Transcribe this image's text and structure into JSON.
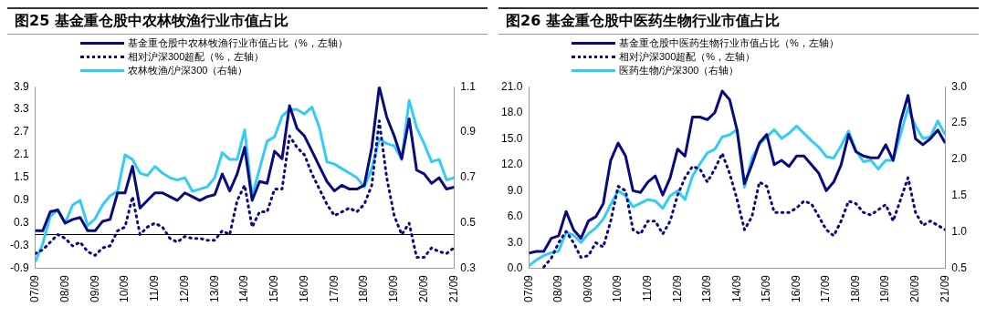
{
  "chart_data": [
    {
      "type": "line",
      "title": "图25 基金重仓股中农林牧渔行业市值占比",
      "x": [
        "2007-09",
        "2007-12",
        "2008-03",
        "2008-06",
        "2008-09",
        "2008-12",
        "2009-03",
        "2009-06",
        "2009-09",
        "2009-12",
        "2010-03",
        "2010-06",
        "2010-09",
        "2010-12",
        "2011-03",
        "2011-06",
        "2011-09",
        "2011-12",
        "2012-03",
        "2012-06",
        "2012-09",
        "2012-12",
        "2013-03",
        "2013-06",
        "2013-09",
        "2013-12",
        "2014-03",
        "2014-06",
        "2014-09",
        "2014-12",
        "2015-03",
        "2015-06",
        "2015-09",
        "2015-12",
        "2016-03",
        "2016-06",
        "2016-09",
        "2016-12",
        "2017-03",
        "2017-06",
        "2017-09",
        "2017-12",
        "2018-03",
        "2018-06",
        "2018-09",
        "2018-12",
        "2019-03",
        "2019-06",
        "2019-09",
        "2019-12",
        "2020-03",
        "2020-06",
        "2020-09",
        "2020-12",
        "2021-03",
        "2021-06",
        "2021-09"
      ],
      "series": [
        {
          "name": "基金重仓股中农林牧渔行业市值占比（%，左轴）",
          "color": "#0a0a80",
          "line_style": "solid",
          "values": [
            0.1,
            0.1,
            0.6,
            0.65,
            0.3,
            0.4,
            0.45,
            0.1,
            0.1,
            0.35,
            0.4,
            1.1,
            1.1,
            1.8,
            0.7,
            0.9,
            1.1,
            1.1,
            1.0,
            0.9,
            1.1,
            1.0,
            0.9,
            1.0,
            1.05,
            1.6,
            1.15,
            1.6,
            2.3,
            0.9,
            1.4,
            1.35,
            2.2,
            2.0,
            3.4,
            2.8,
            2.6,
            2.2,
            1.8,
            1.4,
            1.15,
            1.3,
            1.2,
            1.2,
            1.3,
            2.3,
            3.9,
            3.1,
            2.6,
            2.0,
            3.05,
            1.7,
            1.6,
            1.35,
            1.5,
            1.2,
            1.25
          ]
        },
        {
          "name": "相对沪深300超配（%，左轴）",
          "color": "#0a0a80",
          "line_style": "dotted",
          "values": [
            -0.5,
            -0.4,
            -0.2,
            0.0,
            -0.1,
            -0.3,
            -0.2,
            -0.45,
            -0.55,
            -0.35,
            -0.3,
            0.1,
            0.2,
            1.0,
            0.0,
            0.2,
            0.3,
            0.2,
            -0.1,
            -0.2,
            -0.05,
            -0.1,
            -0.1,
            -0.15,
            -0.15,
            0.1,
            0.0,
            0.9,
            1.3,
            0.2,
            0.6,
            0.6,
            1.2,
            1.2,
            2.6,
            2.3,
            2.1,
            1.6,
            1.2,
            0.8,
            0.5,
            0.6,
            0.7,
            0.6,
            0.8,
            1.3,
            3.0,
            1.5,
            0.5,
            0.0,
            0.3,
            -0.6,
            -0.6,
            -0.35,
            -0.45,
            -0.5,
            -0.35
          ]
        },
        {
          "name": "农林牧渔/沪深300（右轴）",
          "color": "#33ccf5",
          "line_style": "solid",
          "axis": "y2",
          "values": [
            0.33,
            0.41,
            0.53,
            0.56,
            0.5,
            0.58,
            0.6,
            0.49,
            0.52,
            0.58,
            0.62,
            0.64,
            0.8,
            0.78,
            0.72,
            0.71,
            0.75,
            0.72,
            0.7,
            0.69,
            0.7,
            0.64,
            0.65,
            0.66,
            0.7,
            0.81,
            0.78,
            0.78,
            0.91,
            0.62,
            0.74,
            0.86,
            0.88,
            0.97,
            1.0,
            1.0,
            0.98,
            1.01,
            0.92,
            0.77,
            0.76,
            0.74,
            0.72,
            0.7,
            0.66,
            0.74,
            0.87,
            0.85,
            0.84,
            0.78,
            1.04,
            0.92,
            0.85,
            0.77,
            0.78,
            0.69,
            0.7
          ]
        }
      ],
      "xlim": [
        "2007-09",
        "2021-09"
      ],
      "xticks": [
        {
          "value": "2007-09",
          "label": "07/09"
        },
        {
          "value": "2008-09",
          "label": "08/09"
        },
        {
          "value": "2009-09",
          "label": "09/09"
        },
        {
          "value": "2010-09",
          "label": "10/09"
        },
        {
          "value": "2011-09",
          "label": "11/09"
        },
        {
          "value": "2012-09",
          "label": "12/09"
        },
        {
          "value": "2013-09",
          "label": "13/09"
        },
        {
          "value": "2014-09",
          "label": "14/09"
        },
        {
          "value": "2015-09",
          "label": "15/09"
        },
        {
          "value": "2016-09",
          "label": "16/09"
        },
        {
          "value": "2017-09",
          "label": "17/09"
        },
        {
          "value": "2018-09",
          "label": "18/09"
        },
        {
          "value": "2019-09",
          "label": "19/09"
        },
        {
          "value": "2020-09",
          "label": "20/09"
        },
        {
          "value": "2021-09",
          "label": "21/09"
        }
      ],
      "ylim": [
        -0.9,
        3.9
      ],
      "yticks": [
        -0.9,
        -0.3,
        0.3,
        0.9,
        1.5,
        2.1,
        2.7,
        3.3,
        3.9
      ],
      "y2lim": [
        0.3,
        1.1
      ],
      "y2ticks": [
        0.3,
        0.5,
        0.7,
        0.9,
        1.1
      ],
      "ref_lines": [
        {
          "axis": "y",
          "value": 0,
          "color": "#000000"
        }
      ],
      "grid": false,
      "legend": "top left"
    },
    {
      "type": "line",
      "title": "图26 基金重仓股中医药生物行业市值占比",
      "x": [
        "2007-09",
        "2007-12",
        "2008-03",
        "2008-06",
        "2008-09",
        "2008-12",
        "2009-03",
        "2009-06",
        "2009-09",
        "2009-12",
        "2010-03",
        "2010-06",
        "2010-09",
        "2010-12",
        "2011-03",
        "2011-06",
        "2011-09",
        "2011-12",
        "2012-03",
        "2012-06",
        "2012-09",
        "2012-12",
        "2013-03",
        "2013-06",
        "2013-09",
        "2013-12",
        "2014-03",
        "2014-06",
        "2014-09",
        "2014-12",
        "2015-03",
        "2015-06",
        "2015-09",
        "2015-12",
        "2016-03",
        "2016-06",
        "2016-09",
        "2016-12",
        "2017-03",
        "2017-06",
        "2017-09",
        "2017-12",
        "2018-03",
        "2018-06",
        "2018-09",
        "2018-12",
        "2019-03",
        "2019-06",
        "2019-09",
        "2019-12",
        "2020-03",
        "2020-06",
        "2020-09",
        "2020-12",
        "2021-03",
        "2021-06",
        "2021-09"
      ],
      "series": [
        {
          "name": "基金重仓股中医药生物行业市值占比（%，左轴）",
          "color": "#0a0a80",
          "line_style": "solid",
          "values": [
            1.8,
            2.0,
            2.0,
            3.5,
            3.8,
            6.6,
            4.5,
            3.5,
            5.5,
            6.0,
            7.5,
            12.5,
            14.5,
            13.0,
            9.0,
            8.8,
            10.0,
            10.7,
            8.5,
            10.5,
            13.8,
            13.0,
            17.5,
            17.5,
            17.2,
            18.0,
            20.5,
            19.5,
            16.0,
            9.8,
            12.0,
            14.5,
            15.5,
            12.0,
            12.5,
            11.8,
            13.0,
            13.0,
            12.0,
            11.0,
            9.0,
            10.0,
            12.0,
            15.5,
            13.5,
            13.0,
            12.8,
            12.8,
            14.3,
            12.5,
            17.0,
            20.0,
            15.0,
            14.3,
            15.0,
            16.0,
            14.5
          ]
        },
        {
          "name": "相对沪深300超配（%，左轴）",
          "color": "#0a0a80",
          "line_style": "dotted",
          "values": [
            null,
            null,
            0.2,
            1.2,
            3.0,
            4.3,
            3.0,
            1.3,
            1.5,
            3.0,
            2.5,
            5.5,
            9.5,
            9.0,
            4.5,
            4.0,
            5.5,
            5.5,
            4.0,
            5.5,
            8.5,
            10.5,
            11.8,
            11.5,
            10.0,
            11.5,
            13.3,
            11.0,
            8.0,
            4.5,
            6.0,
            10.0,
            9.5,
            6.5,
            6.5,
            6.5,
            7.0,
            7.8,
            7.5,
            6.0,
            4.5,
            3.8,
            5.5,
            7.8,
            7.5,
            6.5,
            6.2,
            6.8,
            7.4,
            5.5,
            8.0,
            10.5,
            6.5,
            5.0,
            5.5,
            5.0,
            4.5
          ]
        },
        {
          "name": "医药生物/沪深300（右轴）",
          "color": "#33ccf5",
          "line_style": "solid",
          "axis": "y2",
          "values": [
            0.54,
            0.62,
            0.68,
            0.72,
            0.74,
            1.0,
            0.96,
            0.86,
            0.98,
            1.06,
            1.18,
            1.38,
            1.57,
            1.5,
            1.35,
            1.4,
            1.45,
            1.43,
            1.33,
            1.5,
            1.57,
            1.45,
            1.77,
            1.94,
            2.09,
            2.14,
            2.31,
            2.34,
            2.41,
            1.62,
            2.02,
            2.21,
            2.31,
            2.41,
            2.29,
            2.36,
            2.46,
            2.36,
            2.26,
            2.17,
            2.04,
            2.02,
            2.19,
            2.39,
            2.12,
            1.97,
            1.99,
            1.87,
            1.99,
            1.99,
            2.34,
            2.71,
            2.46,
            2.29,
            2.31,
            2.53,
            2.34
          ]
        }
      ],
      "xlim": [
        "2007-09",
        "2021-09"
      ],
      "xticks": [
        {
          "value": "2007-09",
          "label": "07/09"
        },
        {
          "value": "2008-09",
          "label": "08/09"
        },
        {
          "value": "2009-09",
          "label": "09/09"
        },
        {
          "value": "2010-09",
          "label": "10/09"
        },
        {
          "value": "2011-09",
          "label": "11/09"
        },
        {
          "value": "2012-09",
          "label": "12/09"
        },
        {
          "value": "2013-09",
          "label": "13/09"
        },
        {
          "value": "2014-09",
          "label": "14/09"
        },
        {
          "value": "2015-09",
          "label": "15/09"
        },
        {
          "value": "2016-09",
          "label": "16/09"
        },
        {
          "value": "2017-09",
          "label": "17/09"
        },
        {
          "value": "2018-09",
          "label": "18/09"
        },
        {
          "value": "2019-09",
          "label": "19/09"
        },
        {
          "value": "2020-09",
          "label": "20/09"
        },
        {
          "value": "2021-09",
          "label": "21/09"
        }
      ],
      "ylim": [
        0.0,
        21.0
      ],
      "yticks": [
        {
          "value": 0,
          "label": "0.0"
        },
        {
          "value": 3,
          "label": "3.0"
        },
        {
          "value": 6,
          "label": "6.0"
        },
        {
          "value": 9,
          "label": "9.0"
        },
        {
          "value": 12,
          "label": "12.0"
        },
        {
          "value": 15,
          "label": "15.0"
        },
        {
          "value": 18,
          "label": "18.0"
        },
        {
          "value": 21,
          "label": "21.0"
        }
      ],
      "y2lim": [
        0.5,
        3.0
      ],
      "y2ticks": [
        0.5,
        {
          "value": 1,
          "label": "1.0"
        },
        1.5,
        {
          "value": 2,
          "label": "2.0"
        },
        2.5,
        {
          "value": 3,
          "label": "3.0"
        }
      ],
      "grid": false,
      "legend": "top left"
    }
  ]
}
